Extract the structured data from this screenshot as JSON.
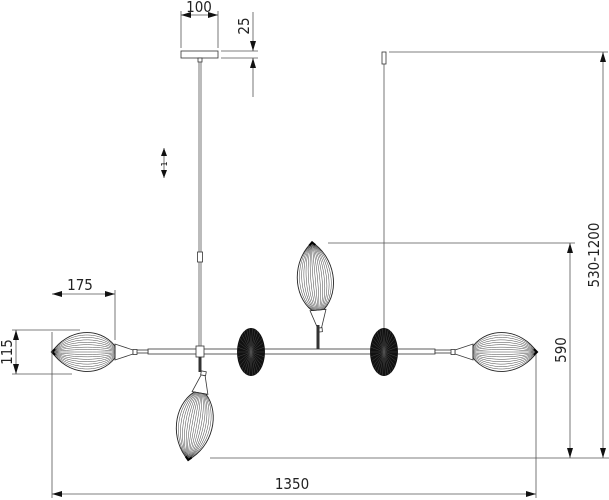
{
  "dimensions": {
    "canopy_width": "100",
    "canopy_height": "25",
    "shade_length": "175",
    "shade_height": "115",
    "total_width": "1350",
    "body_height": "590",
    "total_height_range": "530-1200",
    "cord_count": "1"
  },
  "colors": {
    "line": "#333333",
    "disc": "#111111"
  }
}
